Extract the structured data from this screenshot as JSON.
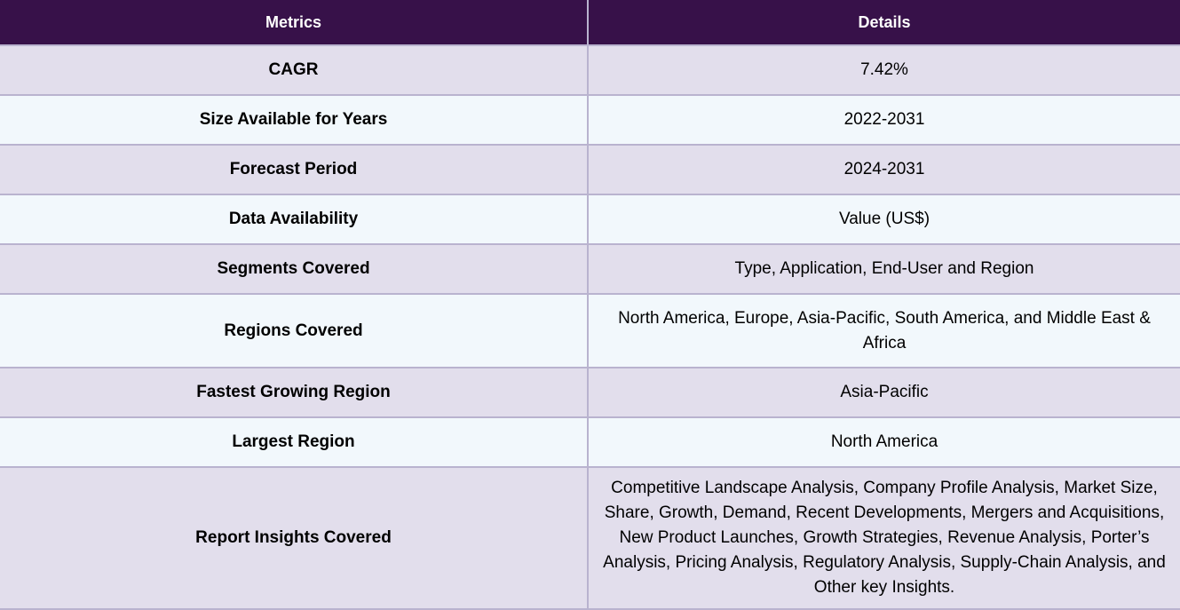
{
  "table": {
    "header": {
      "metrics_label": "Metrics",
      "details_label": "Details"
    },
    "rows": [
      {
        "metric": "CAGR",
        "detail": "7.42%"
      },
      {
        "metric": "Size Available for Years",
        "detail": "2022-2031"
      },
      {
        "metric": "Forecast Period",
        "detail": "2024-2031"
      },
      {
        "metric": "Data Availability",
        "detail": "Value (US$)"
      },
      {
        "metric": "Segments Covered",
        "detail": "Type, Application, End-User and Region"
      },
      {
        "metric": "Regions Covered",
        "detail": "North America, Europe, Asia-Pacific, South America, and Middle East & Africa"
      },
      {
        "metric": "Fastest Growing Region",
        "detail": "Asia-Pacific"
      },
      {
        "metric": "Largest Region",
        "detail": "North America"
      },
      {
        "metric": "Report Insights Covered",
        "detail": "Competitive Landscape Analysis, Company Profile Analysis, Market Size, Share, Growth, Demand, Recent Developments, Mergers and Acquisitions, New Product Launches, Growth Strategies, Revenue Analysis, Porter’s Analysis, Pricing Analysis, Regulatory Analysis, Supply-Chain Analysis, and Other key Insights."
      }
    ]
  },
  "colors": {
    "header_background": "#371149",
    "header_text": "#ffffff",
    "row_odd_background": "#e2deec",
    "row_even_background": "#f2f8fc",
    "border": "#b9b3cf"
  }
}
